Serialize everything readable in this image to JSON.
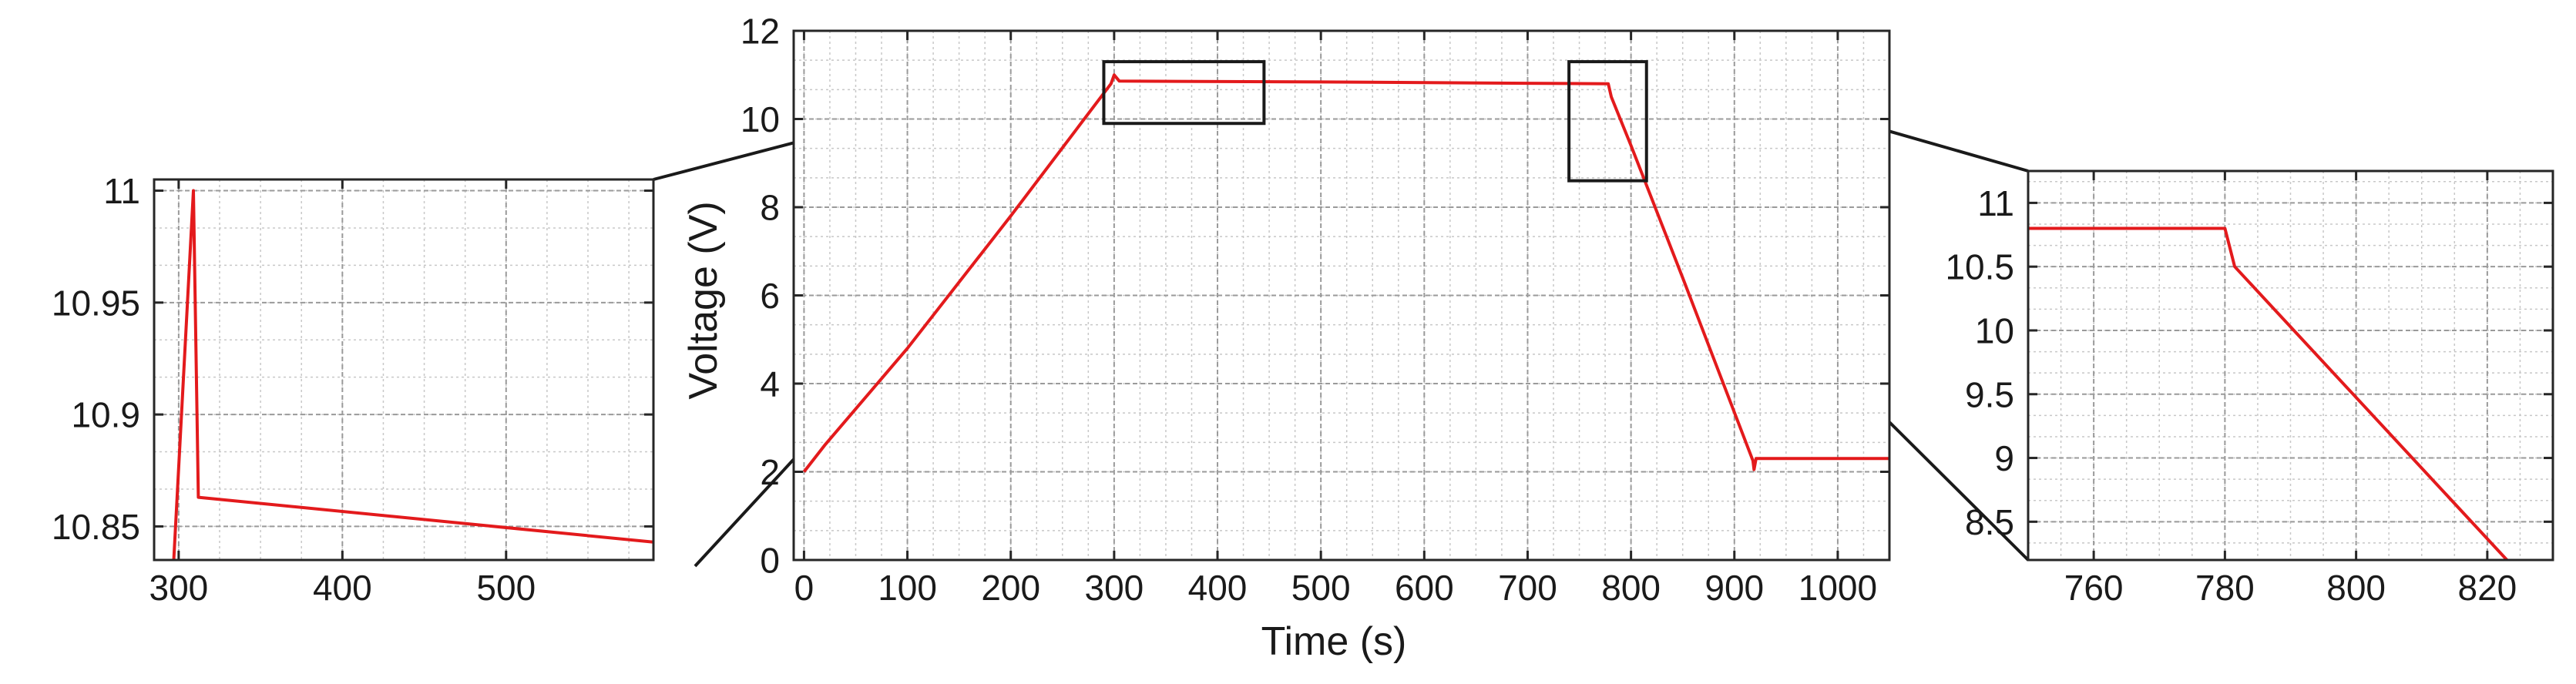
{
  "chart_data": [
    {
      "id": "main",
      "type": "line",
      "xlabel": "Time (s)",
      "ylabel": "Voltage (V)",
      "xlim": [
        -10,
        1050
      ],
      "ylim": [
        0,
        12
      ],
      "xticks": [
        0,
        100,
        200,
        300,
        400,
        500,
        600,
        700,
        800,
        900,
        1000
      ],
      "yticks": [
        0,
        2,
        4,
        6,
        8,
        10,
        12
      ],
      "grid": true,
      "minor_grid": true,
      "series": [
        {
          "color": "#e31a1c",
          "points": [
            [
              0,
              2.0
            ],
            [
              20,
              2.6
            ],
            [
              100,
              4.8
            ],
            [
              200,
              7.8
            ],
            [
              297,
              10.8
            ],
            [
              300,
              11.0
            ],
            [
              305,
              10.86
            ],
            [
              500,
              10.84
            ],
            [
              700,
              10.81
            ],
            [
              778,
              10.8
            ],
            [
              781,
              10.5
            ],
            [
              800,
              9.4
            ],
            [
              850,
              6.4
            ],
            [
              918,
              2.25
            ],
            [
              919,
              2.05
            ],
            [
              921,
              2.3
            ],
            [
              1050,
              2.3
            ]
          ]
        }
      ],
      "zoom_boxes": [
        {
          "x": [
            290,
            445
          ],
          "y": [
            9.9,
            11.3
          ]
        },
        {
          "x": [
            740,
            815
          ],
          "y": [
            8.6,
            11.3
          ]
        }
      ]
    },
    {
      "id": "zoom_left",
      "type": "line",
      "xlim": [
        285,
        590
      ],
      "ylim": [
        10.835,
        11.005
      ],
      "xticks": [
        300,
        400,
        500
      ],
      "yticks": [
        10.85,
        10.9,
        10.95,
        11
      ],
      "ytick_labels": [
        "10.85",
        "10.9",
        "10.95",
        "11"
      ],
      "grid": true,
      "minor_grid": true,
      "series": [
        {
          "color": "#e31a1c",
          "points": [
            [
              297,
              10.835
            ],
            [
              309,
              11.0
            ],
            [
              312,
              10.863
            ],
            [
              590,
              10.843
            ]
          ]
        }
      ]
    },
    {
      "id": "zoom_right",
      "type": "line",
      "xlim": [
        750,
        830
      ],
      "ylim": [
        8.2,
        11.25
      ],
      "xticks": [
        760,
        780,
        800,
        820
      ],
      "yticks": [
        8.5,
        9,
        9.5,
        10,
        10.5,
        11
      ],
      "ytick_labels": [
        "8.5",
        "9",
        "9.5",
        "10",
        "10.5",
        "11"
      ],
      "grid": true,
      "minor_grid": true,
      "series": [
        {
          "color": "#e31a1c",
          "points": [
            [
              750,
              10.8
            ],
            [
              780,
              10.8
            ],
            [
              781.5,
              10.5
            ],
            [
              823,
              8.2
            ]
          ]
        }
      ]
    }
  ]
}
